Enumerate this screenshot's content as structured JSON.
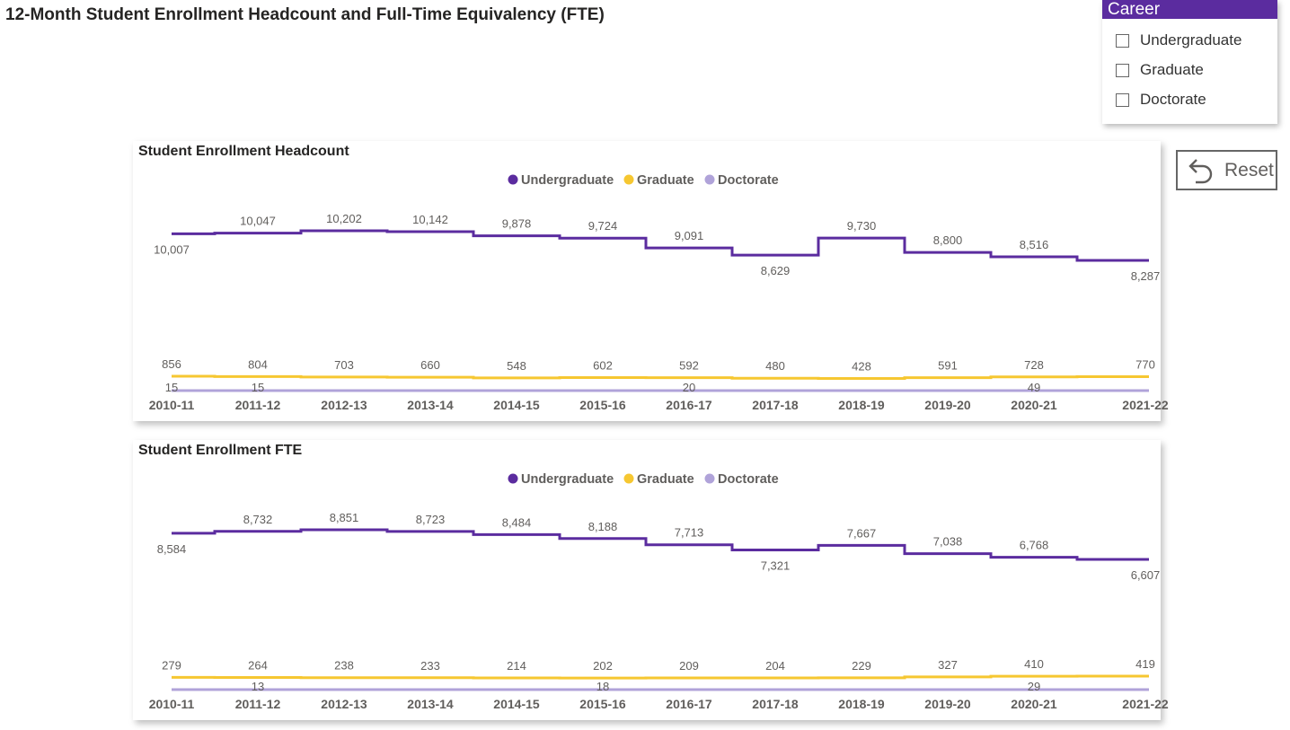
{
  "page": {
    "title": "12-Month Student Enrollment Headcount and Full-Time Equivalency (FTE)"
  },
  "slicer": {
    "title": "Career",
    "items": [
      "Undergraduate",
      "Graduate",
      "Doctorate"
    ]
  },
  "reset": {
    "label": "Reset",
    "icon": "undo-arrow-icon"
  },
  "colors": {
    "undergraduate": "#5b2c9f",
    "graduate": "#f6c731",
    "doctorate": "#b0a3d9",
    "accent": "#5b2c9f"
  },
  "chart_data": [
    {
      "type": "line",
      "title": "Student Enrollment Headcount",
      "legend_position": "top-center",
      "line_style": "step",
      "categories": [
        "2010-11",
        "2011-12",
        "2012-13",
        "2013-14",
        "2014-15",
        "2015-16",
        "2016-17",
        "2017-18",
        "2018-19",
        "2019-20",
        "2020-21",
        "2021-22"
      ],
      "series": [
        {
          "name": "Undergraduate",
          "color": "#5b2c9f",
          "values": [
            10007,
            10047,
            10202,
            10142,
            9878,
            9724,
            9091,
            8629,
            9730,
            8800,
            8516,
            8287
          ],
          "labels": [
            "10,007",
            "10,047",
            "10,202",
            "10,142",
            "9,878",
            "9,724",
            "9,091",
            "8,629",
            "9,730",
            "8,800",
            "8,516",
            "8,287"
          ]
        },
        {
          "name": "Graduate",
          "color": "#f6c731",
          "values": [
            856,
            804,
            703,
            660,
            548,
            602,
            592,
            480,
            428,
            591,
            728,
            770
          ],
          "labels": [
            "856",
            "804",
            "703",
            "660",
            "548",
            "602",
            "592",
            "480",
            "428",
            "591",
            "728",
            "770"
          ]
        },
        {
          "name": "Doctorate",
          "color": "#b0a3d9",
          "values": [
            15,
            15,
            null,
            null,
            null,
            null,
            20,
            null,
            null,
            null,
            49,
            null
          ],
          "labels": [
            "15",
            "15",
            "",
            "",
            "",
            "",
            "20",
            "",
            "",
            "",
            "49",
            ""
          ]
        }
      ],
      "ylim": [
        0,
        10500
      ]
    },
    {
      "type": "line",
      "title": "Student Enrollment FTE",
      "legend_position": "top-center",
      "line_style": "step",
      "categories": [
        "2010-11",
        "2011-12",
        "2012-13",
        "2013-14",
        "2014-15",
        "2015-16",
        "2016-17",
        "2017-18",
        "2018-19",
        "2019-20",
        "2020-21",
        "2021-22"
      ],
      "series": [
        {
          "name": "Undergraduate",
          "color": "#5b2c9f",
          "values": [
            8584,
            8732,
            8851,
            8723,
            8484,
            8188,
            7713,
            7321,
            7667,
            7038,
            6768,
            6607
          ],
          "labels": [
            "8,584",
            "8,732",
            "8,851",
            "8,723",
            "8,484",
            "8,188",
            "7,713",
            "7,321",
            "7,667",
            "7,038",
            "6,768",
            "6,607"
          ]
        },
        {
          "name": "Graduate",
          "color": "#f6c731",
          "values": [
            279,
            264,
            238,
            233,
            214,
            202,
            209,
            204,
            229,
            327,
            410,
            419
          ],
          "labels": [
            "279",
            "264",
            "238",
            "233",
            "214",
            "202",
            "209",
            "204",
            "229",
            "327",
            "410",
            "419"
          ]
        },
        {
          "name": "Doctorate",
          "color": "#b0a3d9",
          "values": [
            null,
            13,
            null,
            null,
            null,
            18,
            null,
            null,
            null,
            null,
            29,
            null
          ],
          "labels": [
            "",
            "13",
            "",
            "",
            "",
            "18",
            "",
            "",
            "",
            "",
            "29",
            ""
          ]
        }
      ],
      "ylim": [
        0,
        9000
      ]
    }
  ]
}
